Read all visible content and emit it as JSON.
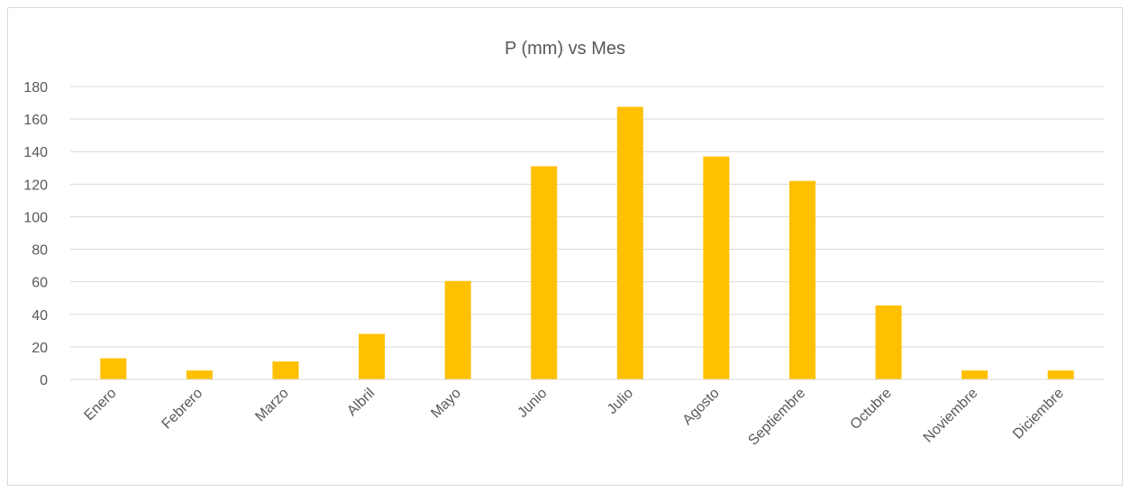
{
  "chart_data": {
    "type": "bar",
    "title": "P (mm) vs Mes",
    "xlabel": "",
    "ylabel": "",
    "categories": [
      "Enero",
      "Febrero",
      "Marzo",
      "Albril",
      "Mayo",
      "Junio",
      "Julio",
      "Agosto",
      "Septiembre",
      "Octubre",
      "Noviembre",
      "Diciembre"
    ],
    "values": [
      13,
      5.5,
      11,
      28,
      60.5,
      131,
      167.5,
      137,
      122,
      45.5,
      5.5,
      5.5
    ],
    "ylim": [
      0,
      180
    ],
    "yticks": [
      "0",
      "20",
      "40",
      "60",
      "80",
      "100",
      "120",
      "140",
      "160",
      "180"
    ],
    "grid": true,
    "legend": "none",
    "bar_color": "#FFC000"
  }
}
